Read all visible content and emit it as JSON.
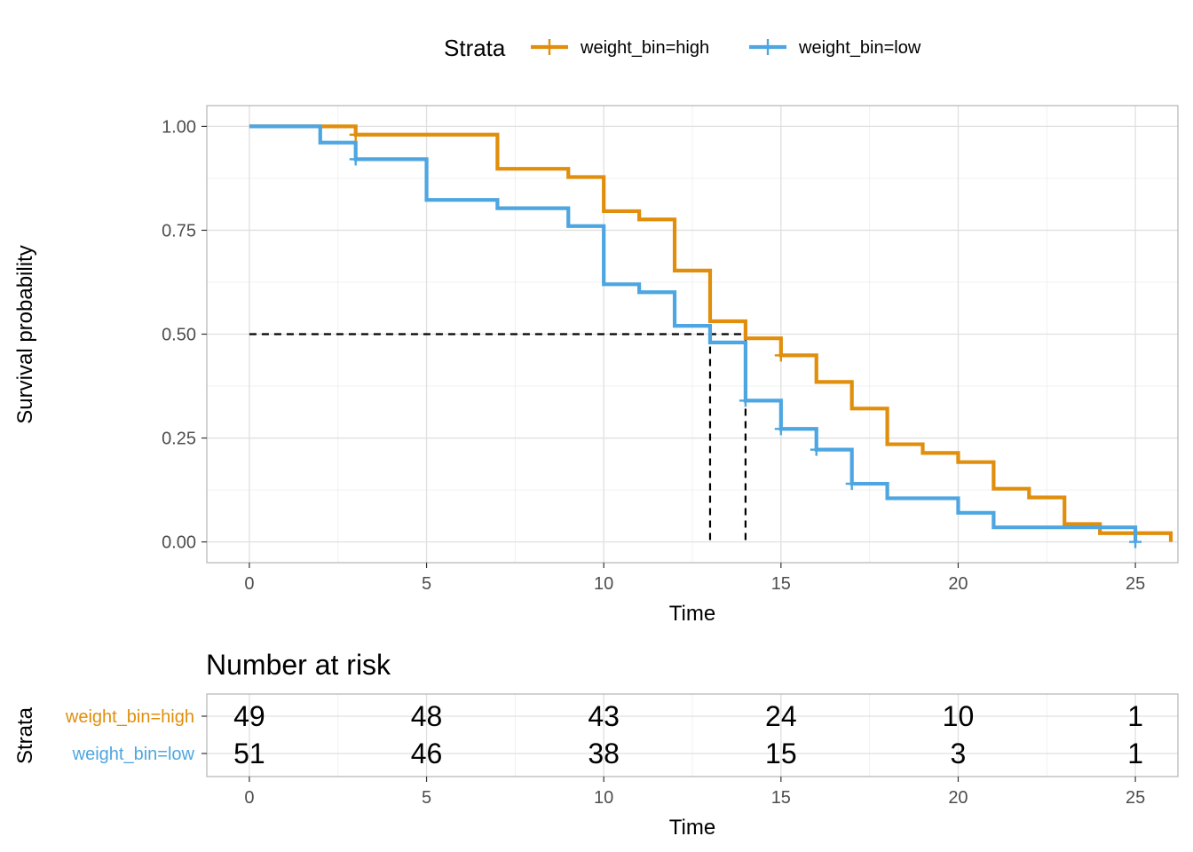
{
  "chart_data": [
    {
      "type": "line",
      "subtype": "kaplan-meier-survival",
      "xlabel": "Time",
      "ylabel": "Survival probability",
      "xlim": [
        -1.2,
        26.2
      ],
      "ylim": [
        -0.05,
        1.05
      ],
      "x_ticks": [
        0,
        5,
        10,
        15,
        20,
        25
      ],
      "x_tick_labels": [
        "0",
        "5",
        "10",
        "15",
        "20",
        "25"
      ],
      "y_ticks": [
        0,
        0.25,
        0.5,
        0.75,
        1
      ],
      "y_tick_labels": [
        "0.00",
        "0.25",
        "0.50",
        "0.75",
        "1.00"
      ],
      "grid": true,
      "legend": {
        "title": "Strata",
        "position": "top",
        "entries": [
          "weight_bin=high",
          "weight_bin=low"
        ]
      },
      "series": [
        {
          "name": "weight_bin=high",
          "color": "#E08E0B",
          "steps": [
            [
              0,
              1.0
            ],
            [
              3,
              0.98
            ],
            [
              7,
              0.898
            ],
            [
              9,
              0.878
            ],
            [
              10,
              0.796
            ],
            [
              11,
              0.776
            ],
            [
              12,
              0.653
            ],
            [
              13,
              0.531
            ],
            [
              14,
              0.49
            ],
            [
              15,
              0.449
            ],
            [
              16,
              0.385
            ],
            [
              17,
              0.321
            ],
            [
              18,
              0.235
            ],
            [
              19,
              0.214
            ],
            [
              20,
              0.192
            ],
            [
              21,
              0.128
            ],
            [
              22,
              0.107
            ],
            [
              23,
              0.043
            ],
            [
              24,
              0.021
            ],
            [
              26,
              0.0
            ]
          ],
          "end": 26,
          "censored": [
            [
              3,
              0.98
            ],
            [
              15,
              0.449
            ]
          ]
        },
        {
          "name": "weight_bin=low",
          "color": "#4DA6E1",
          "steps": [
            [
              0,
              1.0
            ],
            [
              2,
              0.961
            ],
            [
              3,
              0.921
            ],
            [
              5,
              0.823
            ],
            [
              7,
              0.803
            ],
            [
              9,
              0.76
            ],
            [
              10,
              0.62
            ],
            [
              11,
              0.601
            ],
            [
              12,
              0.52
            ],
            [
              13,
              0.48
            ],
            [
              14,
              0.34
            ],
            [
              15,
              0.272
            ],
            [
              16,
              0.222
            ],
            [
              17,
              0.14
            ],
            [
              18,
              0.105
            ],
            [
              20,
              0.07
            ],
            [
              21,
              0.035
            ],
            [
              25,
              0.0
            ]
          ],
          "end": 25,
          "censored": [
            [
              3,
              0.921
            ],
            [
              14,
              0.34
            ],
            [
              15,
              0.272
            ],
            [
              16,
              0.222
            ],
            [
              17,
              0.14
            ],
            [
              25,
              0.0
            ]
          ]
        }
      ],
      "median_lines": [
        {
          "x": 13,
          "y": 0.5
        },
        {
          "x": 14,
          "y": 0.5
        }
      ]
    },
    {
      "type": "table",
      "title": "Number at risk",
      "xlabel": "Time",
      "ylabel": "Strata",
      "x_ticks": [
        0,
        5,
        10,
        15,
        20,
        25
      ],
      "x_tick_labels": [
        "0",
        "5",
        "10",
        "15",
        "20",
        "25"
      ],
      "rows": [
        {
          "label": "weight_bin=high",
          "color": "#E08E0B",
          "values": [
            "49",
            "48",
            "43",
            "24",
            "10",
            "1"
          ]
        },
        {
          "label": "weight_bin=low",
          "color": "#4DA6E1",
          "values": [
            "51",
            "46",
            "38",
            "15",
            "3",
            "1"
          ]
        }
      ]
    }
  ]
}
